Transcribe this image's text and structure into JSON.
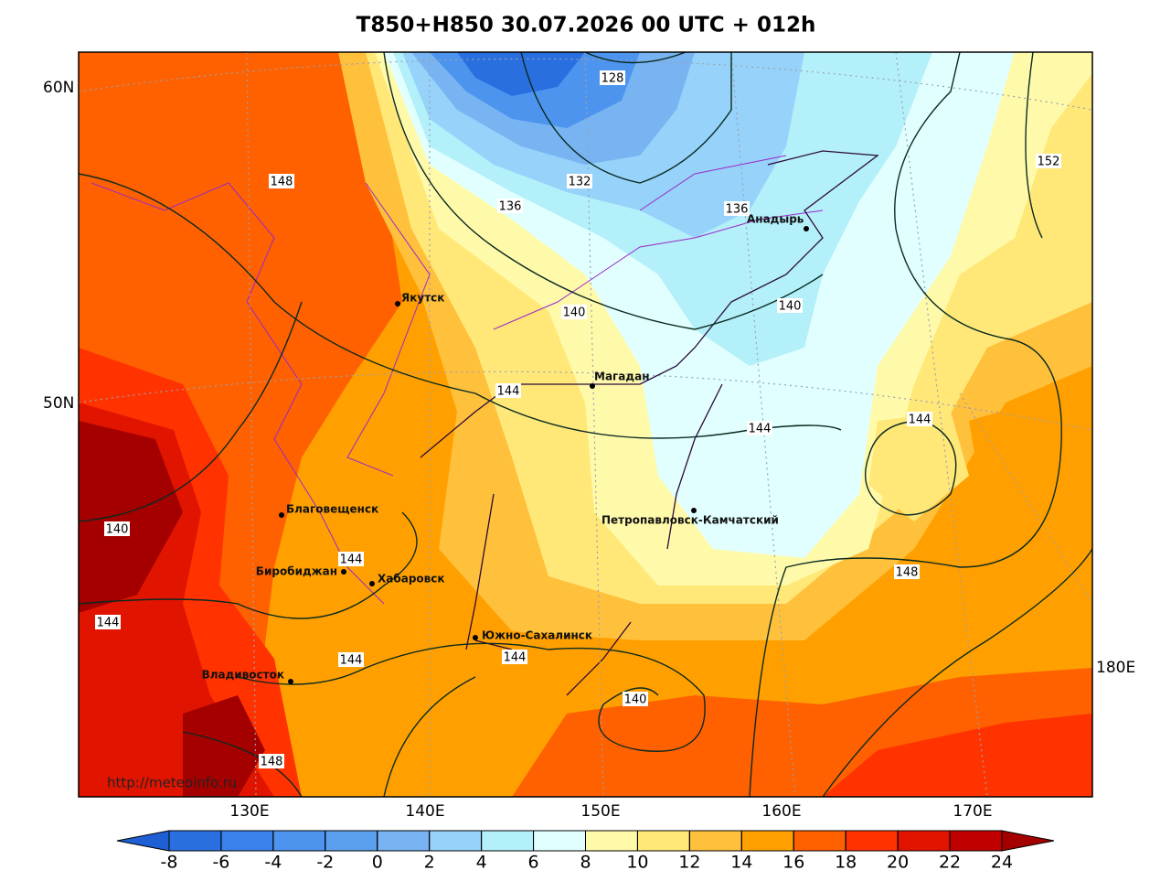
{
  "title": "T850+H850 30.07.2026 00 UTC + 012h",
  "lat_labels": [
    "60N",
    "50N"
  ],
  "lon_labels": [
    "130E",
    "140E",
    "150E",
    "160E",
    "170E",
    "180E"
  ],
  "cities": [
    "Якутск",
    "Магадан",
    "Анадырь",
    "Благовещенск",
    "Биробиджан",
    "Хабаровск",
    "Владивосток",
    "Южно-Сахалинск",
    "Петропавловск-Камчатский"
  ],
  "contour_labels": [
    "128",
    "132",
    "136",
    "136",
    "148",
    "152",
    "140",
    "140",
    "144",
    "144",
    "144",
    "140",
    "144",
    "144",
    "144",
    "144",
    "148",
    "148",
    "140"
  ],
  "source": "http://meteoinfo.ru",
  "colorbar": {
    "ticks": [
      -8,
      -6,
      -4,
      -2,
      0,
      2,
      4,
      6,
      8,
      10,
      12,
      14,
      16,
      18,
      20,
      22,
      24
    ],
    "colors": [
      "#1f5fd4",
      "#2a6fe0",
      "#3a82ea",
      "#4d94ee",
      "#5aa0ef",
      "#78b4f2",
      "#96d2fa",
      "#b4f0fa",
      "#e1ffff",
      "#fffaaa",
      "#ffe878",
      "#ffc03c",
      "#ffa000",
      "#ff6000",
      "#ff3200",
      "#e11400",
      "#c00000",
      "#a50000"
    ]
  }
}
